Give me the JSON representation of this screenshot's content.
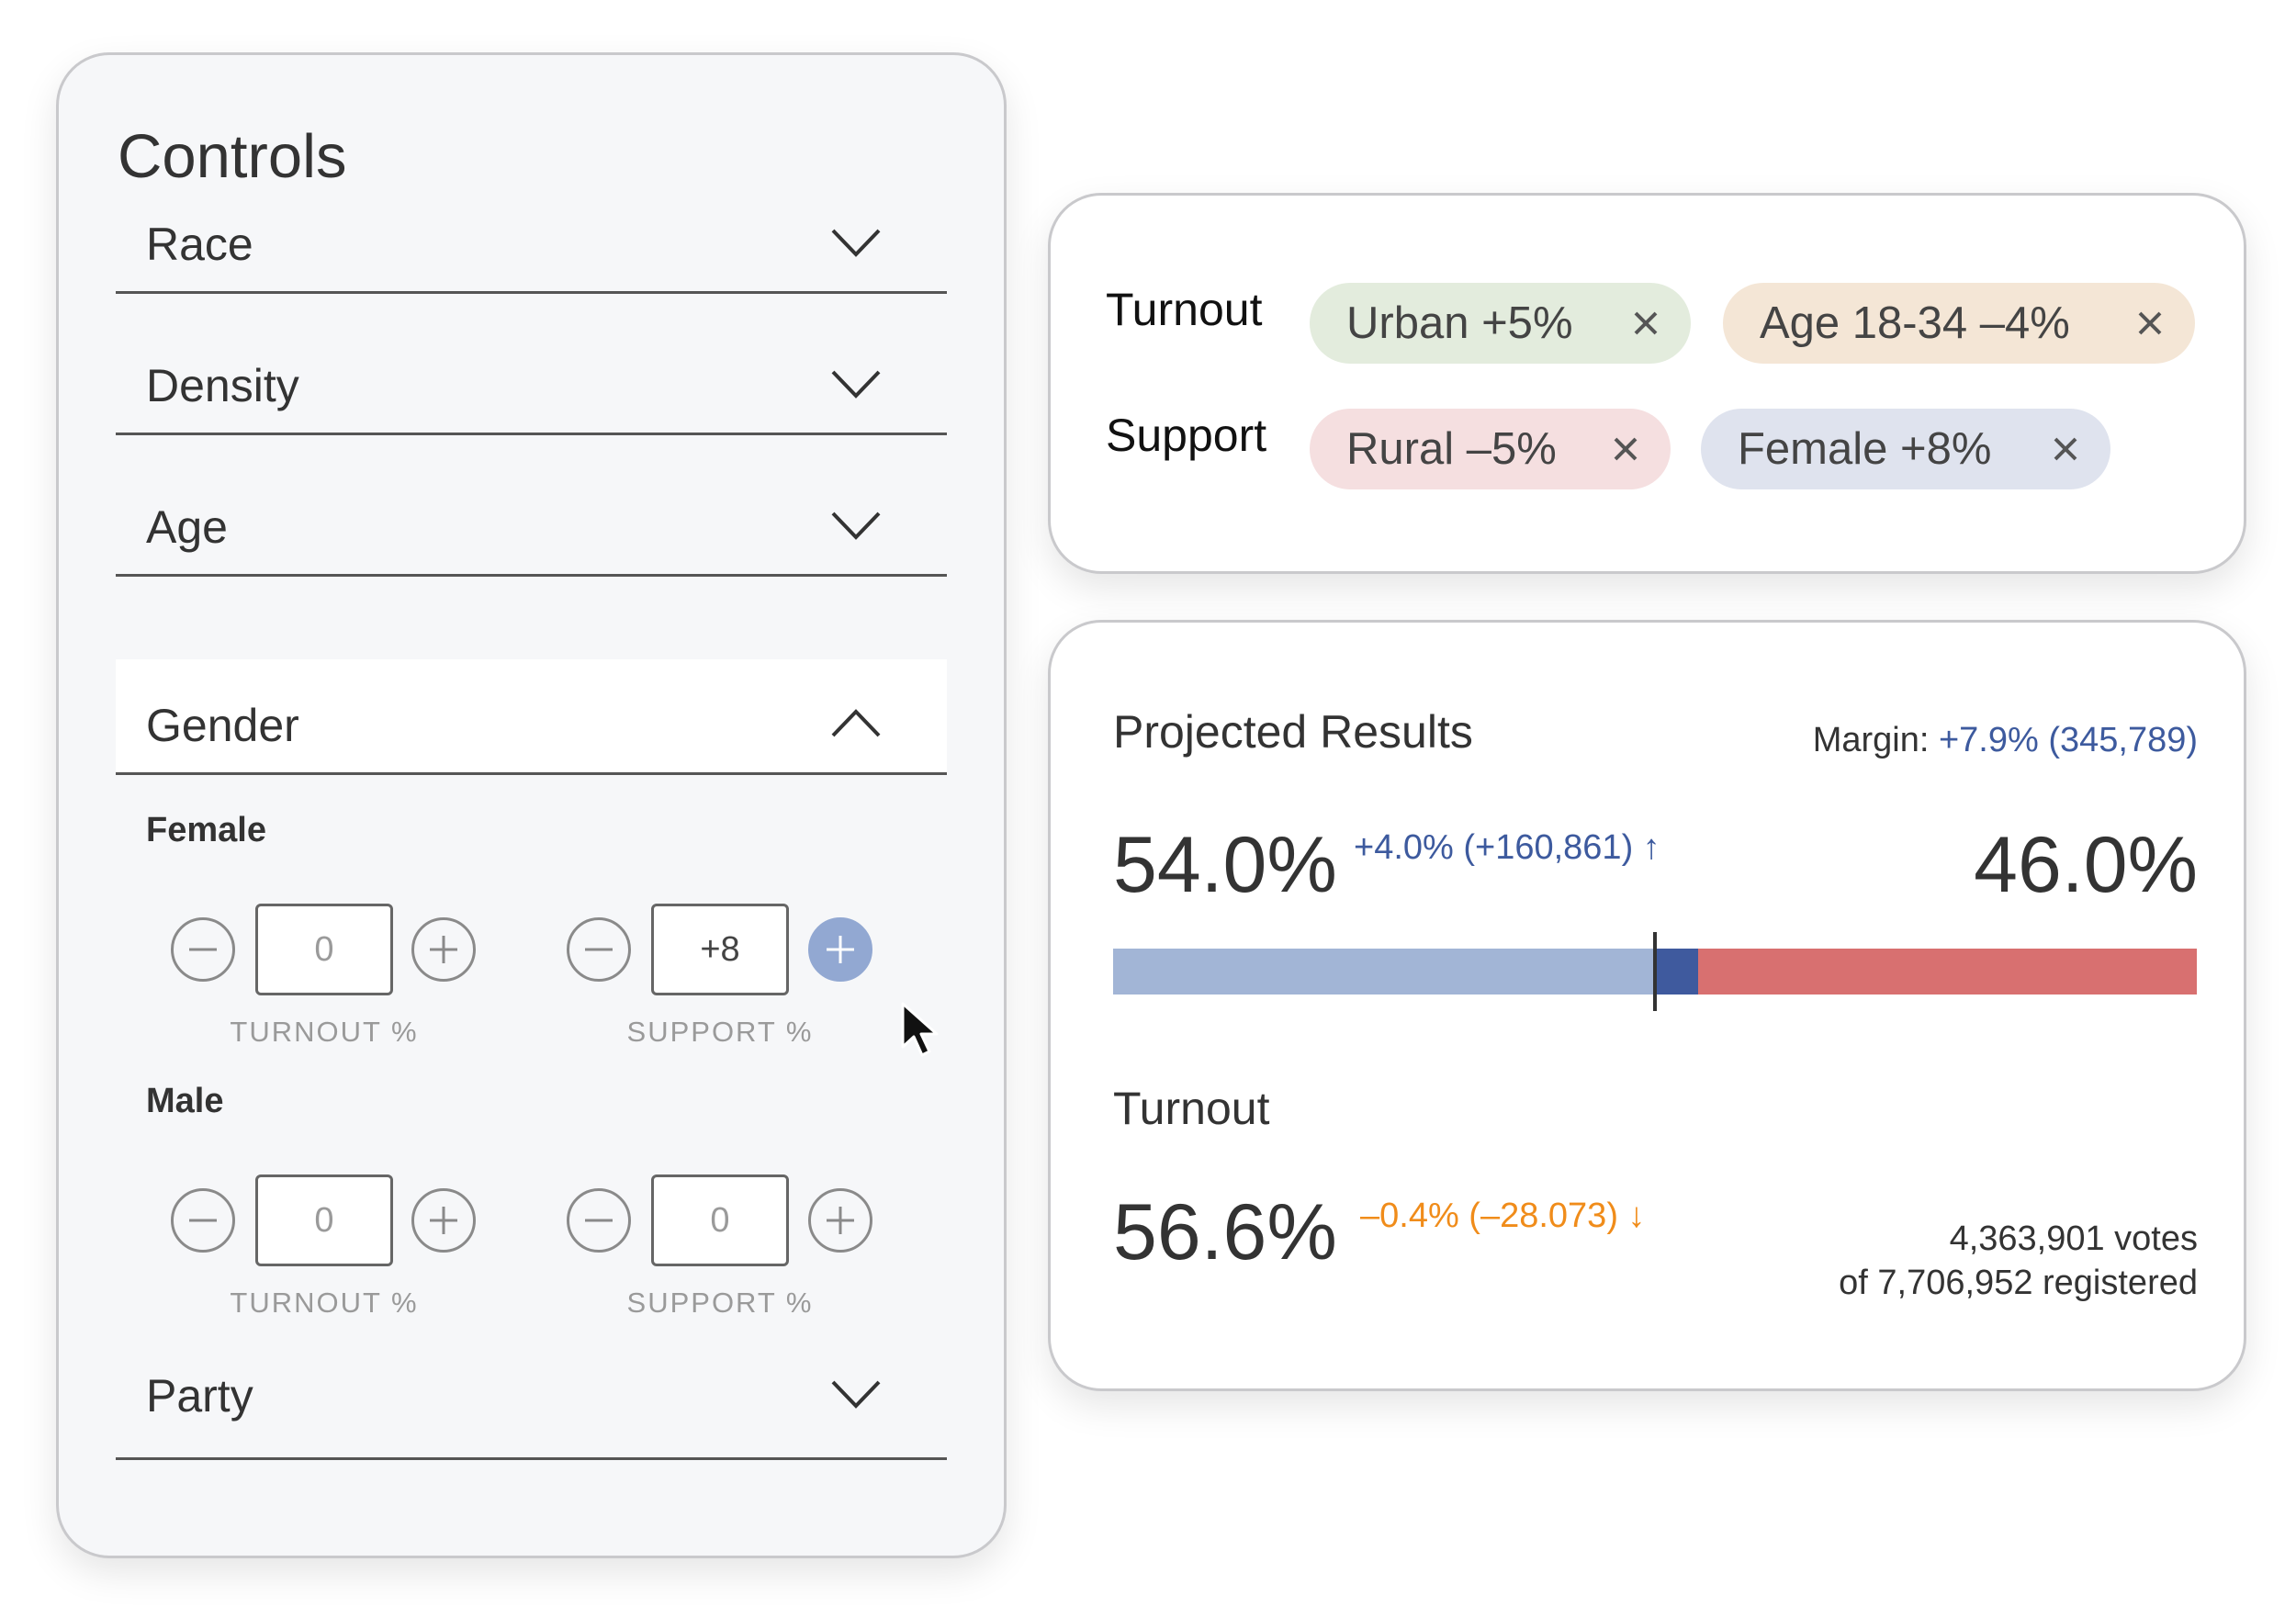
{
  "controls": {
    "title": "Controls",
    "sections": [
      {
        "label": "Race",
        "expanded": false
      },
      {
        "label": "Density",
        "expanded": false
      },
      {
        "label": "Age",
        "expanded": false
      },
      {
        "label": "Gender",
        "expanded": true
      },
      {
        "label": "Party",
        "expanded": false
      }
    ],
    "gender": {
      "female": {
        "label": "Female",
        "turnout": {
          "value": "0",
          "caption": "TURNOUT %"
        },
        "support": {
          "value": "+8",
          "caption": "SUPPORT %"
        }
      },
      "male": {
        "label": "Male",
        "turnout": {
          "value": "0",
          "caption": "TURNOUT %"
        },
        "support": {
          "value": "0",
          "caption": "SUPPORT %"
        }
      }
    }
  },
  "filters": {
    "turnout_label": "Turnout",
    "support_label": "Support",
    "turnout_chips": [
      {
        "text": "Urban  +5%",
        "color": "#e3ecdd"
      },
      {
        "text": "Age 18-34  –4%",
        "color": "#f4e6d6"
      }
    ],
    "support_chips": [
      {
        "text": "Rural  –5%",
        "color": "#f5dfe0"
      },
      {
        "text": "Female  +8%",
        "color": "#dfe3ee"
      }
    ]
  },
  "results": {
    "title": "Projected Results",
    "margin_label": "Margin:",
    "margin_value": "+7.9% (345,789)",
    "left_pct": "54.0%",
    "left_delta": "+4.0% (+160,861) ↑",
    "right_pct": "46.0%",
    "bar": {
      "blue_share": 0.54,
      "shift_share": 0.04,
      "colors": {
        "blue": "#a2b5d6",
        "shift": "#3f5a9e",
        "red": "#d87070"
      }
    },
    "turnout_label": "Turnout",
    "turnout_pct": "56.6%",
    "turnout_delta": "–0.4% (–28.073) ↓",
    "votes_line1": "4,363,901 votes",
    "votes_line2": "of 7,706,952 registered"
  },
  "colors": {
    "accent_blue": "#3d5a9e",
    "accent_orange": "#f08c1a",
    "active_button": "#92a8d2"
  },
  "icons": {
    "chevron_down": "chevron-down-icon",
    "chevron_up": "chevron-up-icon",
    "minus": "minus-icon",
    "plus": "plus-icon",
    "close": "close-icon",
    "cursor": "cursor-pointer-icon"
  }
}
